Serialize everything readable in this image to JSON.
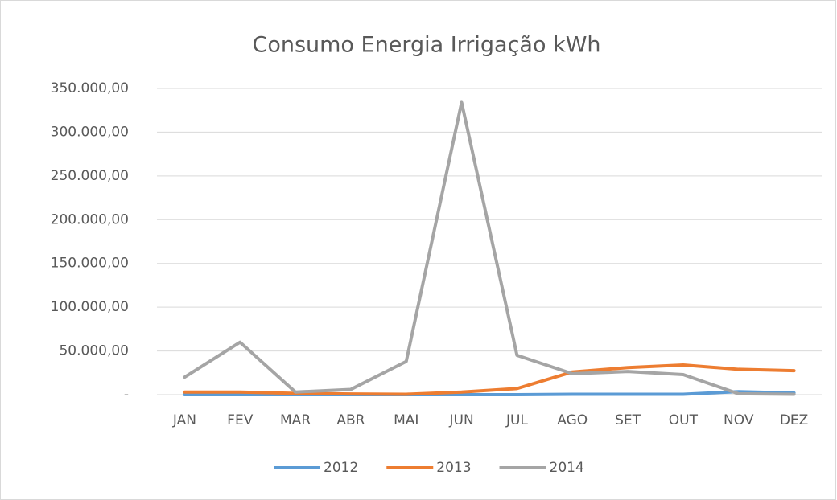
{
  "chart_data": {
    "type": "line",
    "title": "Consumo Energia Irrigação kWh",
    "categories": [
      "JAN",
      "FEV",
      "MAR",
      "ABR",
      "MAI",
      "JUN",
      "JUL",
      "AGO",
      "SET",
      "OUT",
      "NOV",
      "DEZ"
    ],
    "series": [
      {
        "name": "2012",
        "color": "#5b9bd5",
        "values": [
          0,
          0,
          0,
          0,
          0,
          0,
          0,
          500,
          500,
          500,
          3500,
          2000
        ]
      },
      {
        "name": "2013",
        "color": "#ed7d31",
        "values": [
          3000,
          3000,
          1500,
          800,
          500,
          3000,
          7000,
          26000,
          31000,
          34000,
          29000,
          27500
        ]
      },
      {
        "name": "2014",
        "color": "#a5a5a5",
        "values": [
          20000,
          60000,
          3000,
          6000,
          38000,
          334000,
          45000,
          24000,
          26500,
          23000,
          1000,
          500
        ]
      }
    ],
    "ylim": [
      0,
      350000
    ],
    "yticks": [
      {
        "value": 0,
        "label": "-"
      },
      {
        "value": 50000,
        "label": "50.000,00"
      },
      {
        "value": 100000,
        "label": "100.000,00"
      },
      {
        "value": 150000,
        "label": "150.000,00"
      },
      {
        "value": 200000,
        "label": "200.000,00"
      },
      {
        "value": 250000,
        "label": "250.000,00"
      },
      {
        "value": 300000,
        "label": "300.000,00"
      },
      {
        "value": 350000,
        "label": "350.000,00"
      }
    ],
    "grid": true,
    "legend": "bottom"
  }
}
